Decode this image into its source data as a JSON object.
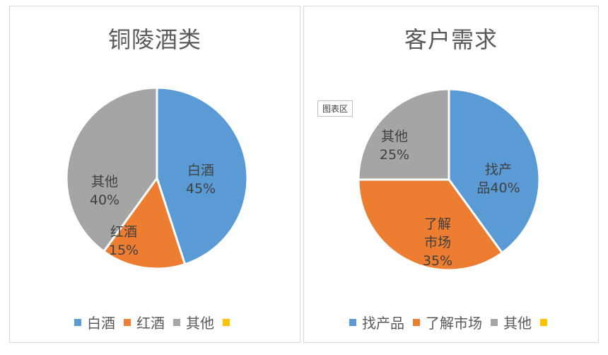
{
  "chart_data": [
    {
      "type": "pie",
      "title": "铜陵酒类",
      "categories": [
        "白酒",
        "红酒",
        "其他",
        ""
      ],
      "values": [
        45,
        15,
        40,
        0
      ],
      "labels": [
        [
          "白酒",
          "45%"
        ],
        [
          "红酒",
          "15%"
        ],
        [
          "其他",
          "40%"
        ]
      ],
      "colors": [
        "#5b9bd5",
        "#ed7d31",
        "#a5a5a5",
        "#ffc000"
      ],
      "legend": "bottom"
    },
    {
      "type": "pie",
      "title": "客户需求",
      "categories": [
        "找产品",
        "了解市场",
        "其他",
        ""
      ],
      "values": [
        40,
        35,
        25,
        0
      ],
      "labels": [
        [
          "找产",
          "品40%"
        ],
        [
          "了解",
          "市场",
          "35%"
        ],
        [
          "其他",
          "25%"
        ]
      ],
      "colors": [
        "#5b9bd5",
        "#ed7d31",
        "#a5a5a5",
        "#ffc000"
      ],
      "legend": "bottom",
      "badge": "图表区"
    }
  ]
}
